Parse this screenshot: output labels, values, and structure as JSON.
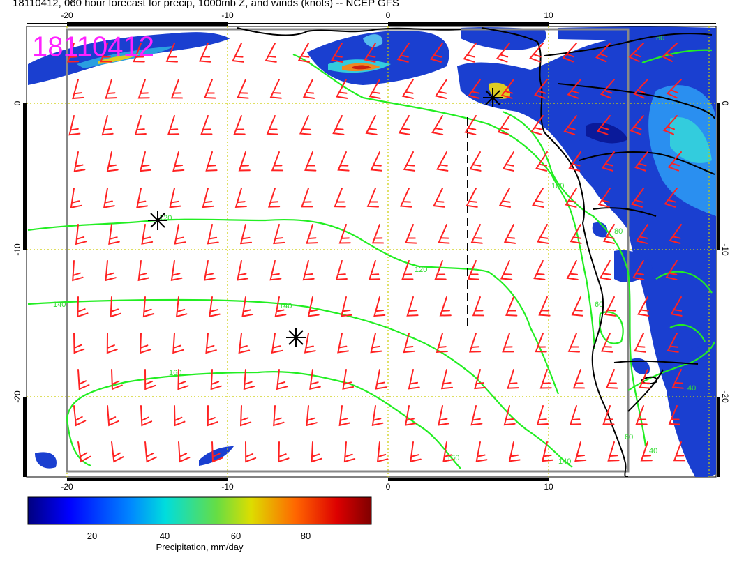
{
  "title": "18110412, 060 hour forecast for precip, 1000mb Z, and winds (knots) -- NCEP GFS",
  "stamp": "18110412",
  "map": {
    "top_lon_ticks": [
      "-20",
      "-10",
      "0",
      "10"
    ],
    "bottom_lon_ticks": [
      "-20",
      "-10",
      "0",
      "10"
    ],
    "left_lat_ticks": [
      "0",
      "-10",
      "-20"
    ],
    "right_lat_ticks": [
      "0",
      "-10",
      "-20"
    ],
    "contour_labels": [
      "120",
      "100",
      "80",
      "120",
      "140",
      "140",
      "160",
      "160",
      "140",
      "60",
      "40",
      "40",
      "60",
      "80"
    ],
    "colors": {
      "wind_barb": "#ff2222",
      "contour": "#22ee22",
      "grid": "#cccc00",
      "coast": "#000000",
      "stamp": "#ff22ff"
    }
  },
  "colorbar": {
    "ticks": [
      "20",
      "40",
      "60",
      "80"
    ],
    "label": "Precipitation, mm/day"
  }
}
